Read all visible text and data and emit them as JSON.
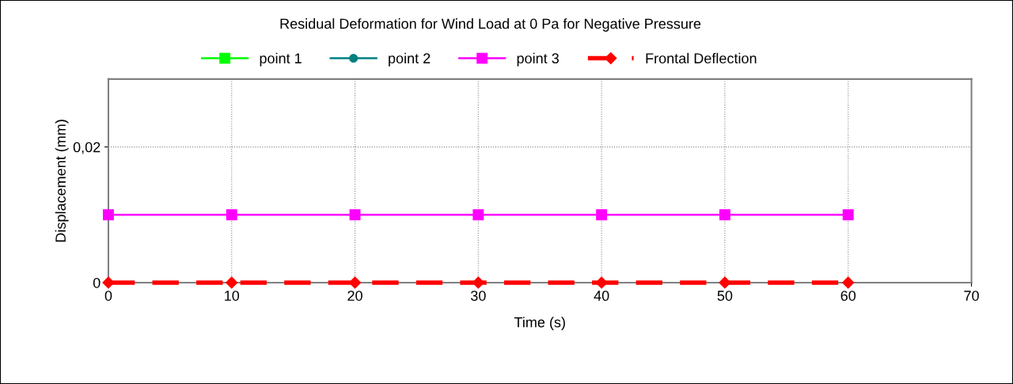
{
  "chart_data": {
    "type": "line",
    "title": "Residual Deformation for Wind Load at 0 Pa for Negative Pressure",
    "xlabel": "Time (s)",
    "ylabel": "Displacement (mm)",
    "x": [
      0,
      10,
      20,
      30,
      40,
      50,
      60
    ],
    "series": [
      {
        "name": "point 1",
        "color": "#00ff00",
        "marker": "square",
        "line_style": "solid",
        "values": [
          null,
          null,
          null,
          null,
          null,
          null,
          null
        ]
      },
      {
        "name": "point 2",
        "color": "#008080",
        "marker": "circle",
        "line_style": "solid",
        "values": [
          null,
          null,
          null,
          null,
          null,
          null,
          null
        ]
      },
      {
        "name": "point 3",
        "color": "#ff00ff",
        "marker": "square",
        "line_style": "solid",
        "values": [
          0.01,
          0.01,
          0.01,
          0.01,
          0.01,
          0.01,
          0.01
        ]
      },
      {
        "name": "Frontal Deflection",
        "color": "#ff0000",
        "marker": "diamond",
        "line_style": "dashed",
        "values": [
          0,
          0,
          0,
          0,
          0,
          0,
          0
        ]
      }
    ],
    "xlim": [
      0,
      70
    ],
    "xticks": [
      0,
      10,
      20,
      30,
      40,
      50,
      60,
      70
    ],
    "ylim": [
      0,
      0.03
    ],
    "yticks": [
      0,
      {
        "value": 0.02,
        "label": "0,02"
      }
    ],
    "grid": true,
    "legend": "top"
  }
}
